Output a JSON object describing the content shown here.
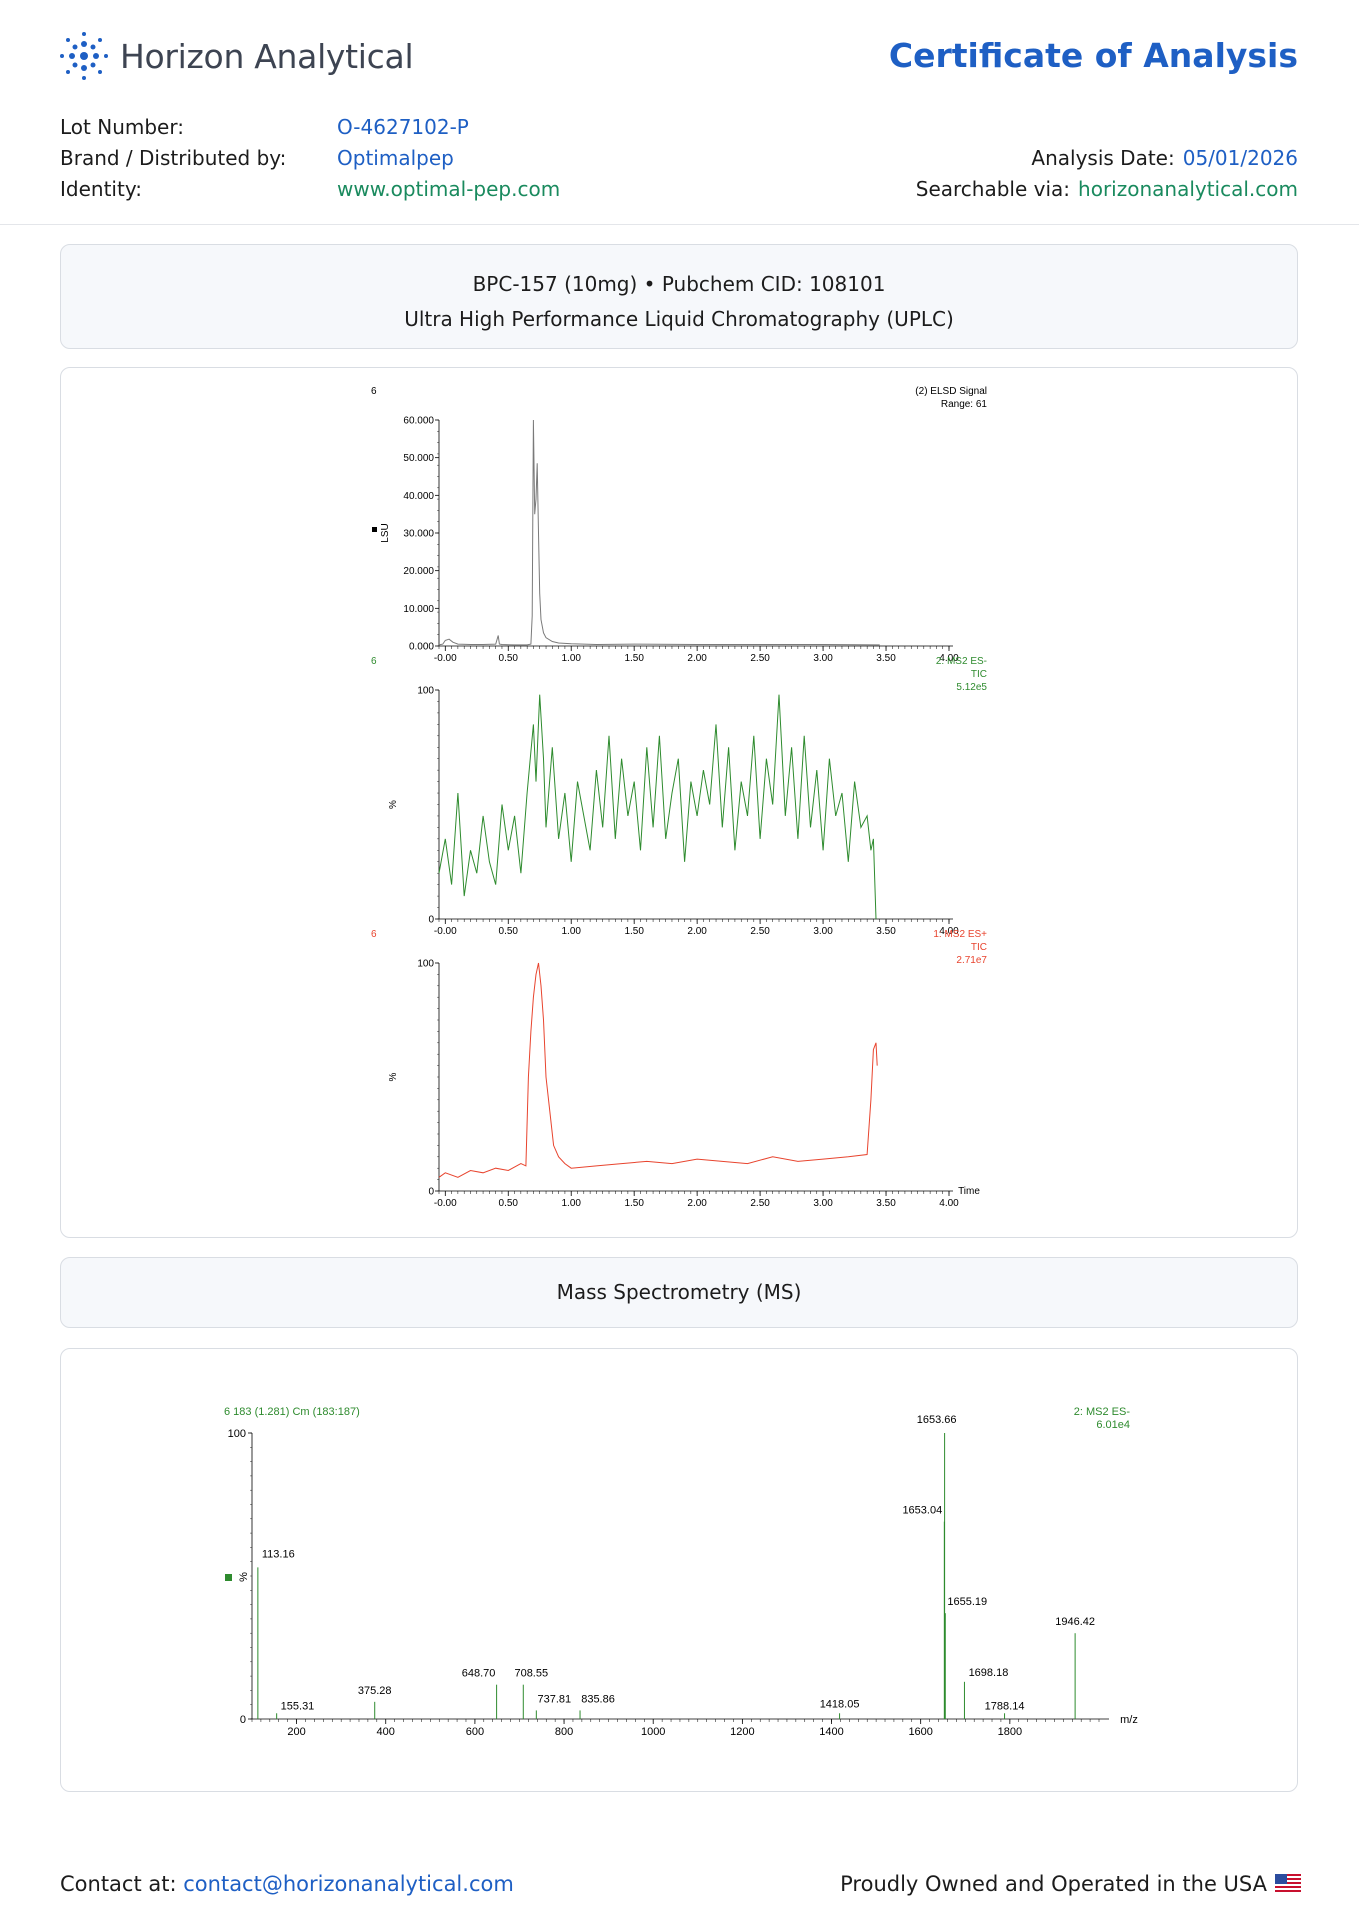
{
  "brand": {
    "name": "Horizon Analytical"
  },
  "document": {
    "title": "Certificate of Analysis"
  },
  "meta": {
    "lot_label": "Lot Number:",
    "lot_value": "O-4627102-P",
    "brand_label": "Brand / Distributed by:",
    "brand_value": "Optimalpep",
    "identity_label": "Identity:",
    "identity_value": "www.optimal-pep.com",
    "date_label": "Analysis Date:",
    "date_value": "05/01/2026",
    "search_label": "Searchable via:",
    "search_value": "horizonanalytical.com"
  },
  "product": {
    "line1": "BPC-157 (10mg) • Pubchem CID: 108101",
    "line2": "Ultra High Performance Liquid Chromatography (UPLC)"
  },
  "ms_heading": "Mass Spectrometry (MS)",
  "footer": {
    "contact_label": "Contact at:",
    "contact_email": "contact@horizonanalytical.com",
    "owned": "Proudly Owned and Operated in the USA"
  },
  "colors": {
    "accent_blue": "#1e5fc4",
    "accent_green": "#1a8a5e",
    "elsd": "#7a7a7a",
    "ms_neg": "#2e8b2e",
    "ms_pos": "#e8442e"
  },
  "chart_data": [
    {
      "type": "line",
      "id": "elsd",
      "left_label": "6",
      "legend": [
        "(2) ELSD Signal",
        "Range: 61"
      ],
      "ylabel": "LSU",
      "yticks": [
        "0.000",
        "10.000",
        "20.000",
        "30.000",
        "40.000",
        "50.000",
        "60.000"
      ],
      "ylim": [
        0,
        60
      ],
      "xticks": [
        "-0.00",
        "0.50",
        "1.00",
        "1.50",
        "2.00",
        "2.50",
        "3.00",
        "3.50",
        "4.00"
      ],
      "xlim": [
        -0.05,
        4.0
      ],
      "x": [
        -0.05,
        -0.02,
        0.0,
        0.03,
        0.06,
        0.1,
        0.2,
        0.3,
        0.4,
        0.42,
        0.43,
        0.45,
        0.55,
        0.6,
        0.65,
        0.68,
        0.69,
        0.7,
        0.71,
        0.72,
        0.73,
        0.74,
        0.75,
        0.76,
        0.78,
        0.8,
        0.85,
        0.9,
        1.0,
        1.2,
        1.5,
        2.0,
        2.5,
        3.0,
        3.45
      ],
      "y": [
        0.3,
        0.5,
        1.5,
        1.8,
        1.0,
        0.5,
        0.4,
        0.4,
        0.5,
        2.8,
        0.5,
        0.4,
        0.3,
        0.3,
        0.3,
        0.5,
        8.0,
        60.0,
        35.0,
        39.0,
        48.5,
        30.0,
        14.0,
        7.0,
        3.5,
        2.2,
        1.2,
        0.8,
        0.6,
        0.4,
        0.5,
        0.4,
        0.4,
        0.4,
        0.3
      ]
    },
    {
      "type": "line",
      "id": "ms_neg",
      "left_label": "6",
      "legend": [
        "2: MS2 ES-",
        "TIC",
        "5.12e5"
      ],
      "ylabel": "%",
      "yticks": [
        "0",
        "100"
      ],
      "ylim": [
        0,
        100
      ],
      "xticks": [
        "-0.00",
        "0.50",
        "1.00",
        "1.50",
        "2.00",
        "2.50",
        "3.00",
        "3.50",
        "4.00"
      ],
      "xlim": [
        -0.05,
        4.0
      ],
      "x": [
        -0.05,
        0.0,
        0.05,
        0.1,
        0.15,
        0.2,
        0.25,
        0.3,
        0.35,
        0.4,
        0.45,
        0.5,
        0.55,
        0.6,
        0.65,
        0.7,
        0.72,
        0.75,
        0.78,
        0.8,
        0.85,
        0.9,
        0.95,
        1.0,
        1.05,
        1.1,
        1.15,
        1.2,
        1.25,
        1.3,
        1.35,
        1.4,
        1.45,
        1.5,
        1.55,
        1.6,
        1.65,
        1.7,
        1.75,
        1.8,
        1.85,
        1.9,
        1.95,
        2.0,
        2.05,
        2.1,
        2.15,
        2.2,
        2.25,
        2.3,
        2.35,
        2.4,
        2.45,
        2.5,
        2.55,
        2.6,
        2.65,
        2.7,
        2.75,
        2.8,
        2.85,
        2.9,
        2.95,
        3.0,
        3.05,
        3.1,
        3.15,
        3.2,
        3.25,
        3.3,
        3.35,
        3.38,
        3.4,
        3.42
      ],
      "y": [
        20,
        35,
        15,
        55,
        10,
        30,
        20,
        45,
        25,
        15,
        50,
        30,
        45,
        20,
        55,
        85,
        60,
        98,
        70,
        40,
        75,
        35,
        55,
        25,
        60,
        45,
        30,
        65,
        40,
        80,
        35,
        70,
        45,
        60,
        30,
        75,
        40,
        80,
        35,
        55,
        70,
        25,
        60,
        45,
        65,
        50,
        85,
        40,
        75,
        30,
        60,
        45,
        80,
        35,
        70,
        50,
        98,
        45,
        75,
        35,
        80,
        40,
        65,
        30,
        70,
        45,
        55,
        25,
        60,
        40,
        45,
        30,
        35,
        0
      ],
      "annotation": "noisy TIC; peaks near 0.78 and 2.63 reach ~100%"
    },
    {
      "type": "line",
      "id": "ms_pos",
      "left_label": "6",
      "legend": [
        "1: MS2 ES+",
        "TIC",
        "2.71e7"
      ],
      "ylabel": "%",
      "yticks": [
        "0",
        "100"
      ],
      "ylim": [
        0,
        100
      ],
      "xticks": [
        "-0.00",
        "0.50",
        "1.00",
        "1.50",
        "2.00",
        "2.50",
        "3.00",
        "3.50",
        "4.00"
      ],
      "xlabel": "Time",
      "xlim": [
        -0.05,
        4.0
      ],
      "x": [
        -0.05,
        0.0,
        0.1,
        0.2,
        0.3,
        0.4,
        0.5,
        0.6,
        0.64,
        0.66,
        0.68,
        0.7,
        0.72,
        0.74,
        0.76,
        0.78,
        0.8,
        0.83,
        0.86,
        0.9,
        0.95,
        1.0,
        1.2,
        1.4,
        1.6,
        1.8,
        2.0,
        2.2,
        2.4,
        2.6,
        2.8,
        3.0,
        3.2,
        3.35,
        3.38,
        3.4,
        3.42,
        3.43
      ],
      "y": [
        6,
        8,
        6,
        9,
        8,
        10,
        9,
        12,
        11,
        50,
        70,
        85,
        95,
        100,
        90,
        75,
        50,
        35,
        20,
        15,
        12,
        10,
        11,
        12,
        13,
        12,
        14,
        13,
        12,
        15,
        13,
        14,
        15,
        16,
        40,
        62,
        65,
        55
      ]
    },
    {
      "type": "bar",
      "id": "ms_spectrum",
      "header": "6 183 (1.281) Cm (183:187)",
      "legend": [
        "2: MS2 ES-",
        "6.01e4"
      ],
      "ylabel": "%",
      "yticks": [
        "0",
        "100"
      ],
      "ylim": [
        0,
        100
      ],
      "xlabel": "m/z",
      "xticks": [
        "200",
        "400",
        "600",
        "800",
        "1000",
        "1200",
        "1400",
        "1600",
        "1800"
      ],
      "xlim": [
        100,
        2000
      ],
      "peaks": [
        {
          "mz": 113.16,
          "label": "113.16",
          "intensity": 53
        },
        {
          "mz": 155.31,
          "label": "155.31",
          "intensity": 2
        },
        {
          "mz": 375.28,
          "label": "375.28",
          "intensity": 6
        },
        {
          "mz": 648.7,
          "label": "648.70",
          "intensity": 12
        },
        {
          "mz": 708.55,
          "label": "708.55",
          "intensity": 12
        },
        {
          "mz": 737.81,
          "label": "737.81",
          "intensity": 3
        },
        {
          "mz": 835.86,
          "label": "835.86",
          "intensity": 3
        },
        {
          "mz": 1418.05,
          "label": "1418.05",
          "intensity": 2
        },
        {
          "mz": 1653.04,
          "label": "1653.04",
          "intensity": 69
        },
        {
          "mz": 1653.66,
          "label": "1653.66",
          "intensity": 100
        },
        {
          "mz": 1655.19,
          "label": "1655.19",
          "intensity": 37
        },
        {
          "mz": 1698.18,
          "label": "1698.18",
          "intensity": 13
        },
        {
          "mz": 1788.14,
          "label": "1788.14",
          "intensity": 2
        },
        {
          "mz": 1946.42,
          "label": "1946.42",
          "intensity": 30
        }
      ]
    }
  ]
}
